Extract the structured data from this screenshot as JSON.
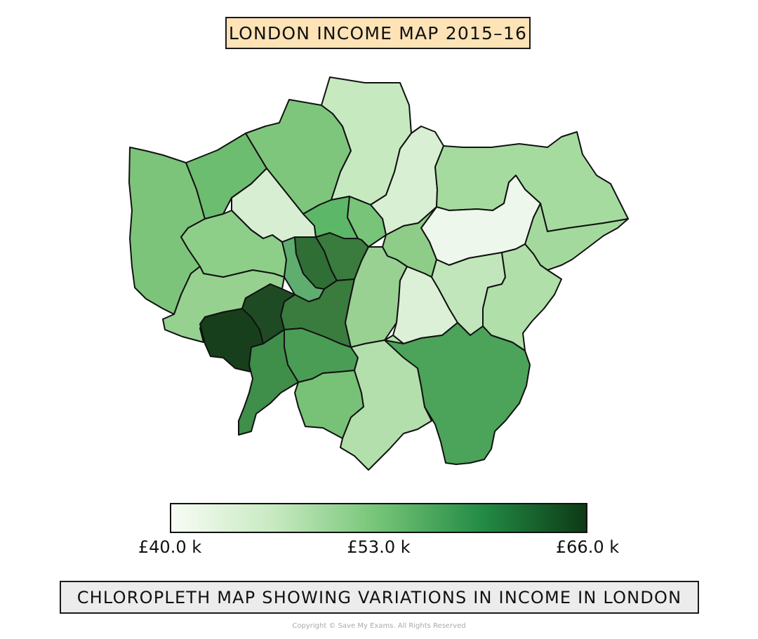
{
  "title": "LONDON INCOME MAP 2015–16",
  "caption": "CHLOROPLETH MAP SHOWING VARIATIONS IN INCOME IN LONDON",
  "copyright": "Copyright © Save My Exams. All Rights Reserved",
  "legend": {
    "min": 40.0,
    "max": 66.0,
    "colors": [
      "#f7fcf5",
      "#c7e9c0",
      "#74c476",
      "#238b45",
      "#0d3a16"
    ],
    "ticks": [
      {
        "label": "£40.0 k",
        "value": 40.0
      },
      {
        "label": "£53.0 k",
        "value": 53.0
      },
      {
        "label": "£66.0 k",
        "value": 66.0
      }
    ]
  },
  "map": {
    "outline_color": "#111111",
    "regions": [
      {
        "id": "north-west-outer",
        "color": "#7cc47a"
      },
      {
        "id": "north-west-inner",
        "color": "#6cbd6f"
      },
      {
        "id": "north-central",
        "color": "#7fc67d"
      },
      {
        "id": "north-top",
        "color": "#c7e9c0"
      },
      {
        "id": "north-east-narrow",
        "color": "#d9efd3"
      },
      {
        "id": "north-east",
        "color": "#a6dba0"
      },
      {
        "id": "east-outer",
        "color": "#a4d99d"
      },
      {
        "id": "west-pale",
        "color": "#d7eed2"
      },
      {
        "id": "west-mid",
        "color": "#8dcf89"
      },
      {
        "id": "central-north",
        "color": "#5cb868"
      },
      {
        "id": "central-north-small",
        "color": "#78c478"
      },
      {
        "id": "east-pale",
        "color": "#eef7ec"
      },
      {
        "id": "east-central-small",
        "color": "#8ecd87"
      },
      {
        "id": "west-strip",
        "color": "#5fae70"
      },
      {
        "id": "central-dark-strip",
        "color": "#2f6e35"
      },
      {
        "id": "central-west",
        "color": "#3a7b3e"
      },
      {
        "id": "central",
        "color": "#3a7b3e"
      },
      {
        "id": "inner-east",
        "color": "#99d193"
      },
      {
        "id": "inner-east-pale",
        "color": "#dcf0d7"
      },
      {
        "id": "east-mid",
        "color": "#c2e6bb"
      },
      {
        "id": "east-south",
        "color": "#b0dfa9"
      },
      {
        "id": "south-west-outer",
        "color": "#96d190"
      },
      {
        "id": "south-west-darkest",
        "color": "#173f1c"
      },
      {
        "id": "south-west-inner-dark",
        "color": "#1f4b24"
      },
      {
        "id": "south-central",
        "color": "#4a9d55"
      },
      {
        "id": "south-west",
        "color": "#3f8e4a"
      },
      {
        "id": "south-mid",
        "color": "#77c276"
      },
      {
        "id": "south-central-light",
        "color": "#b3dfac"
      },
      {
        "id": "south-east",
        "color": "#4ca35a"
      }
    ]
  }
}
